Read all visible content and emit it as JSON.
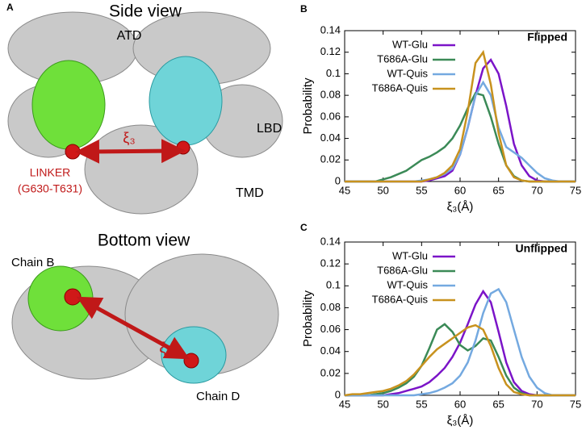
{
  "panels": {
    "a": "A",
    "b": "B",
    "c": "C"
  },
  "side_view": {
    "title": "Side view",
    "atd": "ATD",
    "lbd": "LBD",
    "tmd": "TMD",
    "linker": "LINKER",
    "linker_range": "(G630-T631)",
    "xi": "ξ₃"
  },
  "bottom_view": {
    "title": "Bottom view",
    "chain_b": "Chain B",
    "chain_d": "Chain D",
    "xi": "ξ₃"
  },
  "chart_data": [
    {
      "type": "line",
      "annotation": "Flipped",
      "xlabel": "ξ₃(Å)",
      "ylabel": "Probability",
      "x": [
        45,
        46,
        47,
        48,
        49,
        50,
        51,
        52,
        53,
        54,
        55,
        56,
        57,
        58,
        59,
        60,
        61,
        62,
        63,
        64,
        65,
        66,
        67,
        68,
        69,
        70,
        71,
        72,
        73,
        74,
        75
      ],
      "xlim": [
        45,
        75
      ],
      "xticks": [
        45,
        50,
        55,
        60,
        65,
        70,
        75
      ],
      "ylim": [
        0,
        0.14
      ],
      "yticks": [
        0,
        0.02,
        0.04,
        0.06,
        0.08,
        0.1,
        0.12,
        0.14
      ],
      "legend": "upper left",
      "series": [
        {
          "name": "WT-Glu",
          "color": "#7b14c8",
          "values": [
            0,
            0,
            0,
            0,
            0,
            0,
            0,
            0,
            0,
            0,
            0,
            0.001,
            0.003,
            0.005,
            0.01,
            0.025,
            0.05,
            0.08,
            0.105,
            0.113,
            0.1,
            0.07,
            0.035,
            0.015,
            0.005,
            0.001,
            0,
            0,
            0,
            0,
            0
          ]
        },
        {
          "name": "T686A-Glu",
          "color": "#3b8a57",
          "values": [
            0,
            0,
            0,
            0,
            0,
            0.002,
            0.004,
            0.007,
            0.01,
            0.015,
            0.02,
            0.023,
            0.027,
            0.032,
            0.04,
            0.052,
            0.068,
            0.082,
            0.08,
            0.06,
            0.035,
            0.015,
            0.005,
            0.001,
            0,
            0,
            0,
            0,
            0,
            0,
            0
          ]
        },
        {
          "name": "WT-Quis",
          "color": "#74a9e0",
          "values": [
            0,
            0,
            0,
            0,
            0,
            0,
            0,
            0,
            0,
            0,
            0.001,
            0.002,
            0.004,
            0.007,
            0.012,
            0.025,
            0.05,
            0.08,
            0.092,
            0.08,
            0.05,
            0.032,
            0.027,
            0.022,
            0.015,
            0.008,
            0.003,
            0.001,
            0,
            0,
            0
          ]
        },
        {
          "name": "T686A-Quis",
          "color": "#c8921e",
          "values": [
            0,
            0,
            0,
            0,
            0,
            0,
            0,
            0,
            0,
            0,
            0,
            0.002,
            0.004,
            0.008,
            0.015,
            0.03,
            0.065,
            0.11,
            0.12,
            0.09,
            0.045,
            0.015,
            0.004,
            0.001,
            0,
            0,
            0,
            0,
            0,
            0,
            0
          ]
        }
      ]
    },
    {
      "type": "line",
      "annotation": "Unflipped",
      "xlabel": "ξ₃(Å)",
      "ylabel": "Probability",
      "x": [
        45,
        46,
        47,
        48,
        49,
        50,
        51,
        52,
        53,
        54,
        55,
        56,
        57,
        58,
        59,
        60,
        61,
        62,
        63,
        64,
        65,
        66,
        67,
        68,
        69,
        70,
        71,
        72,
        73,
        74,
        75
      ],
      "xlim": [
        45,
        75
      ],
      "xticks": [
        45,
        50,
        55,
        60,
        65,
        70,
        75
      ],
      "ylim": [
        0,
        0.14
      ],
      "yticks": [
        0,
        0.02,
        0.04,
        0.06,
        0.08,
        0.1,
        0.12,
        0.14
      ],
      "legend": "upper left",
      "series": [
        {
          "name": "WT-Glu",
          "color": "#7b14c8",
          "values": [
            0,
            0,
            0,
            0,
            0,
            0,
            0.001,
            0.002,
            0.004,
            0.006,
            0.008,
            0.012,
            0.018,
            0.025,
            0.035,
            0.048,
            0.065,
            0.083,
            0.095,
            0.085,
            0.058,
            0.03,
            0.012,
            0.004,
            0.001,
            0,
            0,
            0,
            0,
            0,
            0
          ]
        },
        {
          "name": "T686A-Glu",
          "color": "#3b8a57",
          "values": [
            0,
            0,
            0,
            0,
            0.001,
            0.002,
            0.004,
            0.007,
            0.011,
            0.017,
            0.027,
            0.043,
            0.06,
            0.065,
            0.058,
            0.046,
            0.041,
            0.045,
            0.052,
            0.05,
            0.035,
            0.018,
            0.007,
            0.002,
            0,
            0,
            0,
            0,
            0,
            0,
            0
          ]
        },
        {
          "name": "WT-Quis",
          "color": "#74a9e0",
          "values": [
            0,
            0,
            0,
            0,
            0,
            0,
            0,
            0,
            0,
            0,
            0.001,
            0.002,
            0.004,
            0.007,
            0.011,
            0.018,
            0.03,
            0.05,
            0.075,
            0.093,
            0.097,
            0.085,
            0.06,
            0.035,
            0.017,
            0.007,
            0.002,
            0,
            0,
            0,
            0
          ]
        },
        {
          "name": "T686A-Quis",
          "color": "#c8921e",
          "values": [
            0,
            0.001,
            0.001,
            0.002,
            0.003,
            0.004,
            0.006,
            0.009,
            0.013,
            0.019,
            0.027,
            0.035,
            0.042,
            0.047,
            0.052,
            0.057,
            0.062,
            0.064,
            0.06,
            0.045,
            0.025,
            0.01,
            0.003,
            0.001,
            0,
            0,
            0,
            0,
            0,
            0,
            0
          ]
        }
      ]
    }
  ]
}
